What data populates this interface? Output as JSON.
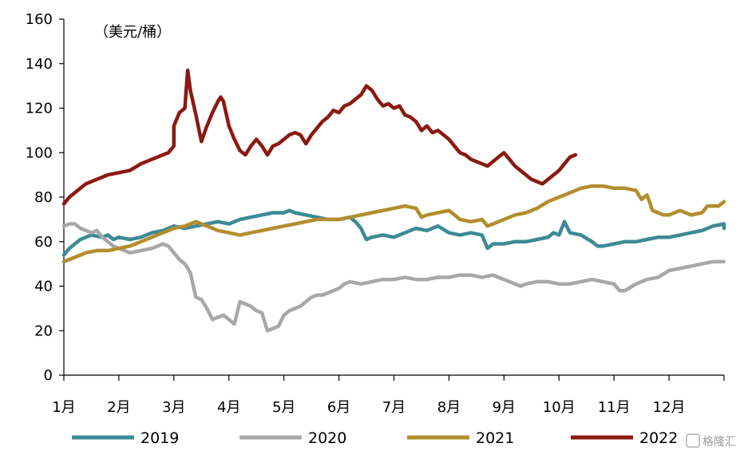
{
  "chart_data": {
    "type": "line",
    "unit_label": "（美元/桶）",
    "ylim": [
      0,
      160
    ],
    "yticks": [
      0,
      20,
      40,
      60,
      80,
      100,
      120,
      140,
      160
    ],
    "x_range": [
      0,
      12
    ],
    "x_tick_labels": [
      "1月",
      "2月",
      "3月",
      "4月",
      "5月",
      "6月",
      "7月",
      "8月",
      "9月",
      "10月",
      "11月",
      "12月"
    ],
    "grid": false,
    "legend_position": "bottom",
    "series": [
      {
        "name": "2019",
        "color": "#3c8a96",
        "points": [
          [
            0.0,
            54
          ],
          [
            0.1,
            57
          ],
          [
            0.2,
            59
          ],
          [
            0.3,
            61
          ],
          [
            0.4,
            62
          ],
          [
            0.5,
            63
          ],
          [
            0.7,
            62
          ],
          [
            0.8,
            63
          ],
          [
            0.9,
            61
          ],
          [
            1.0,
            62
          ],
          [
            1.2,
            61
          ],
          [
            1.4,
            62
          ],
          [
            1.6,
            64
          ],
          [
            1.8,
            65
          ],
          [
            2.0,
            67
          ],
          [
            2.2,
            66
          ],
          [
            2.4,
            67
          ],
          [
            2.6,
            68
          ],
          [
            2.8,
            69
          ],
          [
            3.0,
            68
          ],
          [
            3.2,
            70
          ],
          [
            3.4,
            71
          ],
          [
            3.6,
            72
          ],
          [
            3.8,
            73
          ],
          [
            4.0,
            73
          ],
          [
            4.1,
            74
          ],
          [
            4.2,
            73
          ],
          [
            4.4,
            72
          ],
          [
            4.6,
            71
          ],
          [
            4.8,
            70
          ],
          [
            5.0,
            70
          ],
          [
            5.2,
            71
          ],
          [
            5.3,
            69
          ],
          [
            5.4,
            66
          ],
          [
            5.5,
            61
          ],
          [
            5.6,
            62
          ],
          [
            5.8,
            63
          ],
          [
            6.0,
            62
          ],
          [
            6.2,
            64
          ],
          [
            6.4,
            66
          ],
          [
            6.6,
            65
          ],
          [
            6.8,
            67
          ],
          [
            7.0,
            64
          ],
          [
            7.2,
            63
          ],
          [
            7.4,
            64
          ],
          [
            7.6,
            63
          ],
          [
            7.7,
            57
          ],
          [
            7.8,
            59
          ],
          [
            8.0,
            59
          ],
          [
            8.2,
            60
          ],
          [
            8.4,
            60
          ],
          [
            8.6,
            61
          ],
          [
            8.8,
            62
          ],
          [
            8.9,
            64
          ],
          [
            9.0,
            63
          ],
          [
            9.1,
            69
          ],
          [
            9.2,
            64
          ],
          [
            9.4,
            63
          ],
          [
            9.6,
            60
          ],
          [
            9.7,
            58
          ],
          [
            9.8,
            58
          ],
          [
            10.0,
            59
          ],
          [
            10.2,
            60
          ],
          [
            10.4,
            60
          ],
          [
            10.6,
            61
          ],
          [
            10.8,
            62
          ],
          [
            11.0,
            62
          ],
          [
            11.2,
            63
          ],
          [
            11.4,
            64
          ],
          [
            11.6,
            65
          ],
          [
            11.8,
            67
          ],
          [
            12.0,
            68
          ],
          [
            12.0,
            66
          ]
        ]
      },
      {
        "name": "2020",
        "color": "#a8a8a8",
        "points": [
          [
            0.0,
            67
          ],
          [
            0.1,
            68
          ],
          [
            0.2,
            68
          ],
          [
            0.3,
            66
          ],
          [
            0.4,
            65
          ],
          [
            0.5,
            64
          ],
          [
            0.6,
            65
          ],
          [
            0.7,
            62
          ],
          [
            0.8,
            60
          ],
          [
            0.9,
            58
          ],
          [
            1.0,
            57
          ],
          [
            1.2,
            55
          ],
          [
            1.4,
            56
          ],
          [
            1.6,
            57
          ],
          [
            1.8,
            59
          ],
          [
            1.9,
            58
          ],
          [
            2.0,
            55
          ],
          [
            2.1,
            52
          ],
          [
            2.2,
            50
          ],
          [
            2.3,
            46
          ],
          [
            2.4,
            35
          ],
          [
            2.5,
            34
          ],
          [
            2.6,
            30
          ],
          [
            2.7,
            25
          ],
          [
            2.8,
            26
          ],
          [
            2.9,
            27
          ],
          [
            3.0,
            25
          ],
          [
            3.1,
            23
          ],
          [
            3.2,
            33
          ],
          [
            3.3,
            32
          ],
          [
            3.4,
            31
          ],
          [
            3.5,
            29
          ],
          [
            3.6,
            28
          ],
          [
            3.7,
            20
          ],
          [
            3.8,
            21
          ],
          [
            3.9,
            22
          ],
          [
            4.0,
            27
          ],
          [
            4.1,
            29
          ],
          [
            4.2,
            30
          ],
          [
            4.3,
            31
          ],
          [
            4.4,
            33
          ],
          [
            4.5,
            35
          ],
          [
            4.6,
            36
          ],
          [
            4.7,
            36
          ],
          [
            4.8,
            37
          ],
          [
            5.0,
            39
          ],
          [
            5.1,
            41
          ],
          [
            5.2,
            42
          ],
          [
            5.4,
            41
          ],
          [
            5.6,
            42
          ],
          [
            5.8,
            43
          ],
          [
            6.0,
            43
          ],
          [
            6.2,
            44
          ],
          [
            6.4,
            43
          ],
          [
            6.6,
            43
          ],
          [
            6.8,
            44
          ],
          [
            7.0,
            44
          ],
          [
            7.2,
            45
          ],
          [
            7.4,
            45
          ],
          [
            7.6,
            44
          ],
          [
            7.8,
            45
          ],
          [
            8.0,
            43
          ],
          [
            8.2,
            41
          ],
          [
            8.3,
            40
          ],
          [
            8.4,
            41
          ],
          [
            8.6,
            42
          ],
          [
            8.8,
            42
          ],
          [
            9.0,
            41
          ],
          [
            9.2,
            41
          ],
          [
            9.4,
            42
          ],
          [
            9.6,
            43
          ],
          [
            9.8,
            42
          ],
          [
            10.0,
            41
          ],
          [
            10.1,
            38
          ],
          [
            10.2,
            38
          ],
          [
            10.4,
            41
          ],
          [
            10.6,
            43
          ],
          [
            10.8,
            44
          ],
          [
            11.0,
            47
          ],
          [
            11.2,
            48
          ],
          [
            11.4,
            49
          ],
          [
            11.6,
            50
          ],
          [
            11.8,
            51
          ],
          [
            12.0,
            51
          ]
        ]
      },
      {
        "name": "2021",
        "color": "#b38d2e",
        "points": [
          [
            0.0,
            51
          ],
          [
            0.1,
            52
          ],
          [
            0.2,
            53
          ],
          [
            0.3,
            54
          ],
          [
            0.4,
            55
          ],
          [
            0.6,
            56
          ],
          [
            0.8,
            56
          ],
          [
            1.0,
            57
          ],
          [
            1.2,
            58
          ],
          [
            1.4,
            60
          ],
          [
            1.6,
            62
          ],
          [
            1.8,
            64
          ],
          [
            2.0,
            66
          ],
          [
            2.2,
            67
          ],
          [
            2.4,
            69
          ],
          [
            2.6,
            67
          ],
          [
            2.8,
            65
          ],
          [
            3.0,
            64
          ],
          [
            3.2,
            63
          ],
          [
            3.4,
            64
          ],
          [
            3.6,
            65
          ],
          [
            3.8,
            66
          ],
          [
            4.0,
            67
          ],
          [
            4.2,
            68
          ],
          [
            4.4,
            69
          ],
          [
            4.6,
            70
          ],
          [
            4.8,
            70
          ],
          [
            5.0,
            70
          ],
          [
            5.2,
            71
          ],
          [
            5.4,
            72
          ],
          [
            5.6,
            73
          ],
          [
            5.8,
            74
          ],
          [
            6.0,
            75
          ],
          [
            6.2,
            76
          ],
          [
            6.4,
            75
          ],
          [
            6.5,
            71
          ],
          [
            6.6,
            72
          ],
          [
            6.8,
            73
          ],
          [
            7.0,
            74
          ],
          [
            7.1,
            72
          ],
          [
            7.2,
            70
          ],
          [
            7.4,
            69
          ],
          [
            7.6,
            70
          ],
          [
            7.7,
            67
          ],
          [
            7.8,
            68
          ],
          [
            8.0,
            70
          ],
          [
            8.2,
            72
          ],
          [
            8.4,
            73
          ],
          [
            8.6,
            75
          ],
          [
            8.8,
            78
          ],
          [
            9.0,
            80
          ],
          [
            9.2,
            82
          ],
          [
            9.4,
            84
          ],
          [
            9.6,
            85
          ],
          [
            9.8,
            85
          ],
          [
            10.0,
            84
          ],
          [
            10.2,
            84
          ],
          [
            10.4,
            83
          ],
          [
            10.5,
            79
          ],
          [
            10.6,
            81
          ],
          [
            10.7,
            74
          ],
          [
            10.8,
            73
          ],
          [
            10.9,
            72
          ],
          [
            11.0,
            72
          ],
          [
            11.2,
            74
          ],
          [
            11.4,
            72
          ],
          [
            11.6,
            73
          ],
          [
            11.7,
            76
          ],
          [
            11.8,
            76
          ],
          [
            11.9,
            76
          ],
          [
            12.0,
            78
          ]
        ]
      },
      {
        "name": "2022",
        "color": "#8b1a10",
        "points": [
          [
            0.0,
            77
          ],
          [
            0.1,
            80
          ],
          [
            0.2,
            82
          ],
          [
            0.3,
            84
          ],
          [
            0.4,
            86
          ],
          [
            0.6,
            88
          ],
          [
            0.8,
            90
          ],
          [
            1.0,
            91
          ],
          [
            1.2,
            92
          ],
          [
            1.4,
            95
          ],
          [
            1.6,
            97
          ],
          [
            1.8,
            99
          ],
          [
            1.9,
            100
          ],
          [
            2.0,
            103
          ],
          [
            2.0,
            112
          ],
          [
            2.1,
            118
          ],
          [
            2.2,
            120
          ],
          [
            2.25,
            137
          ],
          [
            2.3,
            128
          ],
          [
            2.4,
            117
          ],
          [
            2.5,
            105
          ],
          [
            2.6,
            112
          ],
          [
            2.7,
            118
          ],
          [
            2.8,
            123
          ],
          [
            2.85,
            125
          ],
          [
            2.9,
            123
          ],
          [
            3.0,
            112
          ],
          [
            3.1,
            106
          ],
          [
            3.2,
            101
          ],
          [
            3.3,
            99
          ],
          [
            3.4,
            103
          ],
          [
            3.5,
            106
          ],
          [
            3.6,
            103
          ],
          [
            3.7,
            99
          ],
          [
            3.8,
            103
          ],
          [
            3.9,
            104
          ],
          [
            4.0,
            106
          ],
          [
            4.1,
            108
          ],
          [
            4.2,
            109
          ],
          [
            4.3,
            108
          ],
          [
            4.4,
            104
          ],
          [
            4.5,
            108
          ],
          [
            4.6,
            111
          ],
          [
            4.7,
            114
          ],
          [
            4.8,
            116
          ],
          [
            4.9,
            119
          ],
          [
            5.0,
            118
          ],
          [
            5.1,
            121
          ],
          [
            5.2,
            122
          ],
          [
            5.3,
            124
          ],
          [
            5.4,
            126
          ],
          [
            5.5,
            130
          ],
          [
            5.6,
            128
          ],
          [
            5.7,
            124
          ],
          [
            5.8,
            121
          ],
          [
            5.9,
            122
          ],
          [
            6.0,
            120
          ],
          [
            6.1,
            121
          ],
          [
            6.2,
            117
          ],
          [
            6.3,
            116
          ],
          [
            6.4,
            114
          ],
          [
            6.5,
            110
          ],
          [
            6.6,
            112
          ],
          [
            6.7,
            109
          ],
          [
            6.8,
            110
          ],
          [
            6.9,
            108
          ],
          [
            7.0,
            106
          ],
          [
            7.1,
            103
          ],
          [
            7.2,
            100
          ],
          [
            7.3,
            99
          ],
          [
            7.4,
            97
          ],
          [
            7.5,
            96
          ],
          [
            7.6,
            95
          ],
          [
            7.7,
            94
          ],
          [
            7.8,
            96
          ],
          [
            7.9,
            98
          ],
          [
            8.0,
            100
          ],
          [
            8.1,
            97
          ],
          [
            8.2,
            94
          ],
          [
            8.3,
            92
          ],
          [
            8.4,
            90
          ],
          [
            8.5,
            88
          ],
          [
            8.6,
            87
          ],
          [
            8.7,
            86
          ],
          [
            8.8,
            88
          ],
          [
            8.9,
            90
          ],
          [
            9.0,
            92
          ],
          [
            9.1,
            95
          ],
          [
            9.2,
            98
          ],
          [
            9.3,
            99
          ]
        ]
      }
    ]
  },
  "watermark": "格隆汇"
}
